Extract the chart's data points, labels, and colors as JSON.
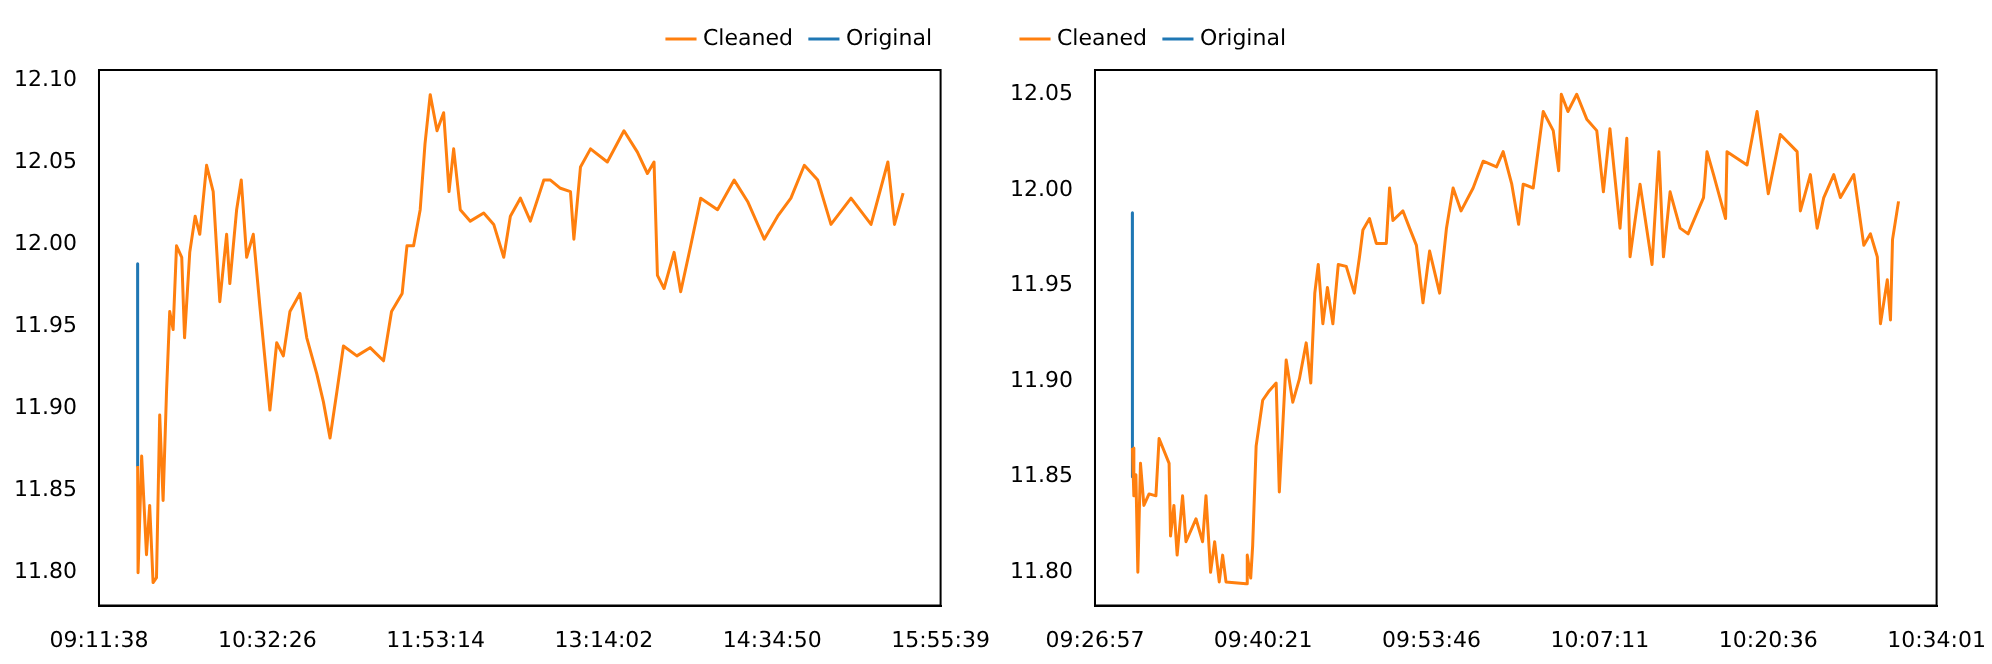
{
  "chart_data": [
    {
      "type": "line",
      "legend": "top right",
      "grid": false,
      "marker": "none",
      "line_style": "solid",
      "xlim": [
        9.193889,
        15.9275
      ],
      "ylim": [
        11.78,
        12.106
      ],
      "xticks": [
        {
          "value": 9.193889,
          "label": "09:11:38"
        },
        {
          "value": 10.540556,
          "label": "10:32:26"
        },
        {
          "value": 11.887222,
          "label": "11:53:14"
        },
        {
          "value": 13.233889,
          "label": "13:14:02"
        },
        {
          "value": 14.580556,
          "label": "14:34:50"
        },
        {
          "value": 15.9275,
          "label": "15:55:39"
        }
      ],
      "yticks": [
        {
          "value": 11.8,
          "label": "11.80"
        },
        {
          "value": 11.85,
          "label": "11.85"
        },
        {
          "value": 11.9,
          "label": "11.90"
        },
        {
          "value": 11.95,
          "label": "11.95"
        },
        {
          "value": 12.0,
          "label": "12.00"
        },
        {
          "value": 12.05,
          "label": "12.05"
        },
        {
          "value": 12.1,
          "label": "12.10"
        }
      ],
      "x": [
        9.5033,
        9.5065,
        9.5354,
        9.5739,
        9.5995,
        9.6268,
        9.654,
        9.6797,
        9.7069,
        9.7342,
        9.7598,
        9.7871,
        9.8143,
        9.856,
        9.8785,
        9.9201,
        9.9634,
        10.0003,
        10.0548,
        10.1077,
        10.1606,
        10.2151,
        10.2408,
        10.2953,
        10.3322,
        10.3755,
        10.4284,
        10.4813,
        10.5614,
        10.6159,
        10.6688,
        10.7217,
        10.8019,
        10.8564,
        10.9366,
        10.9895,
        11.0424,
        11.0969,
        11.1498,
        11.2572,
        11.363,
        11.4704,
        11.5346,
        11.6195,
        11.658,
        11.7109,
        11.7638,
        11.8023,
        11.844,
        11.8985,
        11.9514,
        11.9947,
        12.0316,
        12.0845,
        12.1646,
        12.272,
        12.3522,
        12.4324,
        12.4853,
        12.5654,
        12.6456,
        12.753,
        12.8059,
        12.8861,
        12.9662,
        12.9935,
        13.0464,
        13.1265,
        13.2612,
        13.3943,
        13.5017,
        13.5819,
        13.6348,
        13.662,
        13.7149,
        13.7951,
        13.848,
        13.9281,
        14.0083,
        14.143,
        14.276,
        14.3835,
        14.5165,
        14.6239,
        14.7298,
        14.8372,
        14.9446,
        15.0504,
        15.2107,
        15.371,
        15.5057,
        15.5586,
        15.6276
      ],
      "series": [
        {
          "name": "Original",
          "color": "#1f77b4",
          "x": [
            9.503,
            9.5033
          ],
          "values": [
            11.988,
            11.865
          ]
        },
        {
          "name": "Cleaned",
          "color": "#ff7f0e",
          "values": [
            11.865,
            11.8,
            11.871,
            11.811,
            11.841,
            11.794,
            11.797,
            11.896,
            11.844,
            11.91,
            11.959,
            11.948,
            11.999,
            11.992,
            11.943,
            11.995,
            12.017,
            12.006,
            12.048,
            12.032,
            11.965,
            12.006,
            11.976,
            12.021,
            12.039,
            11.992,
            12.006,
            11.962,
            11.899,
            11.94,
            11.932,
            11.959,
            11.97,
            11.943,
            11.921,
            11.904,
            11.882,
            11.91,
            11.938,
            11.932,
            11.937,
            11.929,
            11.959,
            11.97,
            11.999,
            11.999,
            12.021,
            12.061,
            12.091,
            12.069,
            12.08,
            12.032,
            12.058,
            12.021,
            12.014,
            12.019,
            12.012,
            11.992,
            12.017,
            12.028,
            12.014,
            12.039,
            12.039,
            12.034,
            12.032,
            12.003,
            12.047,
            12.058,
            12.05,
            12.069,
            12.056,
            12.043,
            12.05,
            11.981,
            11.973,
            11.995,
            11.971,
            11.999,
            12.028,
            12.021,
            12.039,
            12.026,
            12.003,
            12.017,
            12.028,
            12.048,
            12.039,
            12.012,
            12.028,
            12.012,
            12.05,
            12.012,
            12.031
          ]
        }
      ]
    },
    {
      "type": "line",
      "legend": "top left",
      "grid": false,
      "marker": "none",
      "line_style": "solid",
      "xlim": [
        9.449167,
        10.566944
      ],
      "ylim": [
        11.7826,
        12.0627
      ],
      "xticks": [
        {
          "value": 9.449167,
          "label": "09:26:57"
        },
        {
          "value": 9.6725,
          "label": "09:40:21"
        },
        {
          "value": 9.896111,
          "label": "09:53:46"
        },
        {
          "value": 10.119722,
          "label": "10:07:11"
        },
        {
          "value": 10.343333,
          "label": "10:20:36"
        },
        {
          "value": 10.566944,
          "label": "10:34:01"
        }
      ],
      "yticks": [
        {
          "value": 11.8,
          "label": "11.80"
        },
        {
          "value": 11.85,
          "label": "11.85"
        },
        {
          "value": 11.9,
          "label": "11.90"
        },
        {
          "value": 11.95,
          "label": "11.95"
        },
        {
          "value": 12.0,
          "label": "12.00"
        },
        {
          "value": 12.05,
          "label": "12.05"
        }
      ],
      "x": [
        9.4989,
        9.5008,
        9.5035,
        9.5061,
        9.5096,
        9.5141,
        9.521,
        9.5301,
        9.5343,
        9.5476,
        9.5495,
        9.554,
        9.5583,
        9.5655,
        9.57,
        9.5833,
        9.5921,
        9.5966,
        9.6027,
        9.6081,
        9.6142,
        9.6187,
        9.6232,
        9.6498,
        9.6514,
        9.656,
        9.6586,
        9.6632,
        9.6719,
        9.6807,
        9.6898,
        9.694,
        9.7031,
        9.7119,
        9.7206,
        9.7297,
        9.7358,
        9.7411,
        9.7457,
        9.7518,
        9.7579,
        9.7651,
        9.7723,
        9.7829,
        9.7936,
        9.8005,
        9.805,
        9.8138,
        9.8228,
        9.8361,
        9.8404,
        9.8449,
        9.8582,
        9.867,
        9.8761,
        9.8848,
        9.8936,
        9.9069,
        9.916,
        9.9248,
        9.9354,
        9.9514,
        9.9647,
        9.9825,
        9.9913,
        10.0027,
        10.0118,
        10.0179,
        10.0312,
        10.0445,
        10.0578,
        10.065,
        10.0685,
        10.0773,
        10.089,
        10.1023,
        10.1156,
        10.1244,
        10.1331,
        10.1465,
        10.1555,
        10.1598,
        10.1731,
        10.189,
        10.1981,
        10.2042,
        10.213,
        10.2263,
        10.2369,
        10.2574,
        10.262,
        10.2707,
        10.2867,
        10.2886,
        10.3152,
        10.3285,
        10.3434,
        10.3594,
        10.3817,
        10.386,
        10.3993,
        10.4083,
        10.4171,
        10.4304,
        10.4392,
        10.457,
        10.4703,
        10.4791,
        10.4882,
        10.4924,
        10.5015,
        10.5057,
        10.5084,
        10.5164
      ],
      "series": [
        {
          "name": "Original",
          "color": "#1f77b4",
          "x": [
            9.4988,
            9.4989
          ],
          "values": [
            11.988,
            11.85
          ]
        },
        {
          "name": "Cleaned",
          "color": "#ff7f0e",
          "values": [
            11.865,
            11.84,
            11.851,
            11.8,
            11.857,
            11.835,
            11.841,
            11.84,
            11.87,
            11.857,
            11.819,
            11.835,
            11.809,
            11.84,
            11.816,
            11.828,
            11.816,
            11.84,
            11.8,
            11.816,
            11.795,
            11.809,
            11.795,
            11.794,
            11.809,
            11.797,
            11.814,
            11.866,
            11.89,
            11.895,
            11.899,
            11.842,
            11.911,
            11.889,
            11.901,
            11.92,
            11.899,
            11.946,
            11.961,
            11.93,
            11.949,
            11.93,
            11.961,
            11.96,
            11.946,
            11.965,
            11.979,
            11.985,
            11.972,
            11.972,
            12.001,
            11.984,
            11.989,
            11.98,
            11.971,
            11.941,
            11.968,
            11.946,
            11.98,
            12.001,
            11.989,
            12.001,
            12.015,
            12.012,
            12.02,
            12.003,
            11.982,
            12.003,
            12.001,
            12.041,
            12.031,
            12.01,
            12.05,
            12.041,
            12.05,
            12.037,
            12.031,
            11.999,
            12.032,
            11.98,
            12.027,
            11.965,
            12.003,
            11.961,
            12.02,
            11.965,
            11.999,
            11.98,
            11.977,
            11.996,
            12.02,
            12.008,
            11.985,
            12.02,
            12.013,
            12.041,
            11.998,
            12.029,
            12.02,
            11.989,
            12.008,
            11.98,
            11.996,
            12.008,
            11.996,
            12.008,
            11.971,
            11.977,
            11.965,
            11.93,
            11.953,
            11.932,
            11.974,
            11.994
          ]
        }
      ]
    }
  ]
}
